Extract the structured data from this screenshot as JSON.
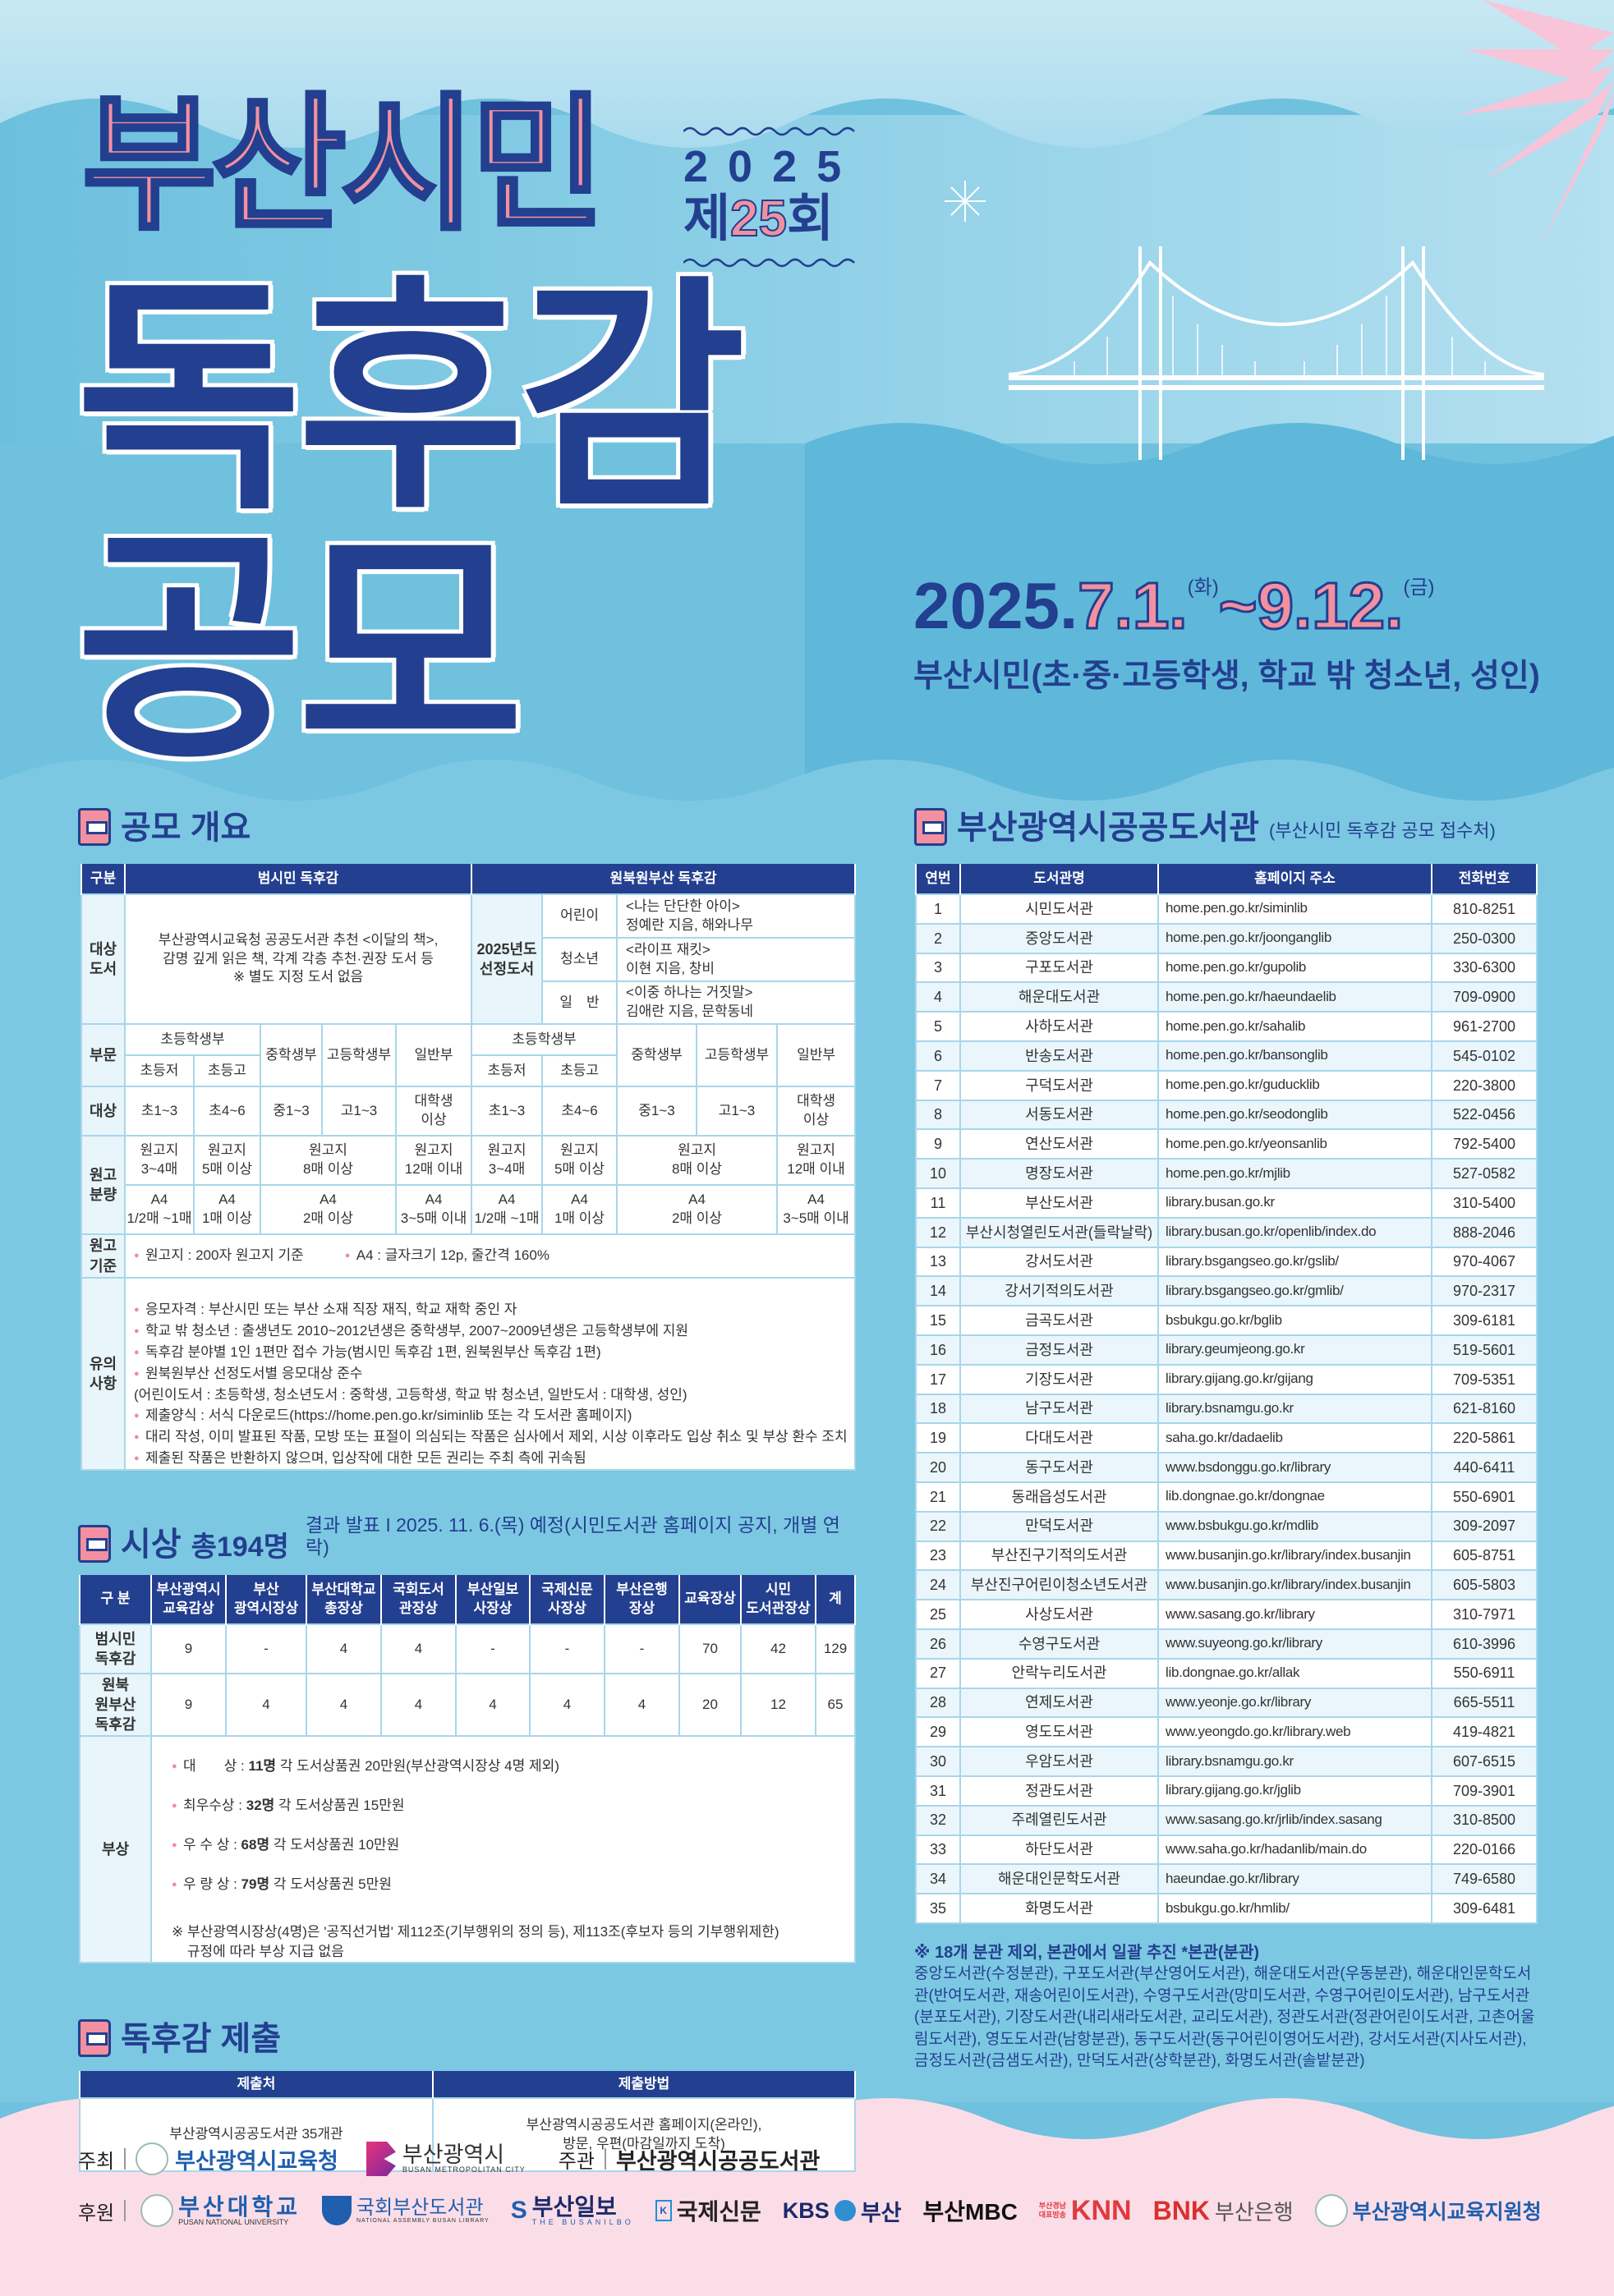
{
  "colors": {
    "navy": "#233f8f",
    "pink": "#f3909f",
    "sky": "#6fc1de",
    "light_sky": "#c3e6f2",
    "footer_pink": "#fbdde8"
  },
  "hero": {
    "title_top": "부산시민",
    "edition_year": "2025",
    "edition_prefix": "제",
    "edition_number": "25",
    "edition_suffix": "회",
    "title_main_1": "독후감",
    "title_main_2": "공모",
    "date_year": "2025.",
    "date_start": "7.1.",
    "date_start_day": "(화)",
    "date_tilde": "~",
    "date_end": "9.12.",
    "date_end_day": "(금)",
    "target": "부산시민(초·중·고등학생, 학교 밖 청소년, 성인)"
  },
  "overview": {
    "heading": "공모 개요",
    "col_label": "구분",
    "group1": "범시민 독후감",
    "group2": "원북원부산 독후감",
    "books_label": "대상\n도서",
    "books_desc": "부산광역시교육청 공공도서관 추천 <이달의 책>,\n감명 깊게 읽은 책, 각계 각층 추천·권장 도서 등\n※ 별도 지정 도서 없음",
    "selected_label": "2025년도\n선정도서",
    "selected": [
      {
        "category": "어린이",
        "book": "<나는 단단한 아이>\n정예란 지음, 해와나무"
      },
      {
        "category": "청소년",
        "book": "<라이프 재킷>\n이현 지음, 창비"
      },
      {
        "category": "일　반",
        "book": "<이중 하나는 거짓말>\n김애란 지음, 문학동네"
      }
    ],
    "division_label": "부문",
    "elementary": "초등학생부",
    "middle": "중학생부",
    "high": "고등학생부",
    "general": "일반부",
    "elem_low": "초등저",
    "elem_high": "초등고",
    "eligibility_label": "대상",
    "eligibility": [
      "초1~3",
      "초4~6",
      "중1~3",
      "고1~3",
      "대학생\n이상"
    ],
    "length_label": "원고\n분량",
    "manuscript": [
      "원고지\n3~4매",
      "원고지\n5매 이상",
      "원고지\n8매 이상",
      "원고지\n12매 이내"
    ],
    "a4": [
      "A4\n1/2매 ~1매",
      "A4\n1매 이상",
      "A4\n2매 이상",
      "A4\n3~5매 이내"
    ],
    "standard_label": "원고\n기준",
    "standards": [
      "원고지 : 200자 원고지 기준",
      "A4 : 글자크기 12p, 줄간격 160%"
    ],
    "notes_label": "유의\n사항",
    "notes": [
      "응모자격 : 부산시민 또는 부산 소재 직장 재직, 학교 재학 중인 자",
      "학교 밖 청소년 : 출생년도 2010~2012년생은 중학생부, 2007~2009년생은 고등학생부에 지원",
      "독후감 분야별 1인 1편만 접수 가능(범시민 독후감 1편, 원북원부산 독후감 1편)",
      "원북원부산 선정도서별 응모대상 준수",
      "(어린이도서 : 초등학생, 청소년도서 : 중학생, 고등학생, 학교 밖 청소년, 일반도서 : 대학생, 성인)",
      "제출양식 : 서식 다운로드(https://home.pen.go.kr/siminlib 또는 각 도서관 홈페이지)",
      "대리 작성, 이미 발표된 작품, 모방 또는 표절이 의심되는 작품은 심사에서 제외, 시상 이후라도  입상 취소 및 부상 환수 조치",
      "제출된 작품은 반환하지 않으며, 입상작에 대한 모든 권리는 주최 측에 귀속됨"
    ]
  },
  "awards": {
    "heading": "시상",
    "total": "총194명",
    "announce": "결과 발표 I 2025. 11. 6.(목) 예정(시민도서관 홈페이지 공지, 개별 연락)",
    "columns": [
      "구 분",
      "부산광역시\n교육감상",
      "부산\n광역시장상",
      "부산대학교\n총장상",
      "국회도서\n관장상",
      "부산일보\n사장상",
      "국제신문\n사장상",
      "부산은행\n장상",
      "교육장상",
      "시민\n도서관장상",
      "계"
    ],
    "rows": [
      {
        "label": "범시민\n독후감",
        "values": [
          "9",
          "-",
          "4",
          "4",
          "-",
          "-",
          "-",
          "70",
          "42",
          "129"
        ]
      },
      {
        "label": "원북\n원부산\n독후감",
        "values": [
          "9",
          "4",
          "4",
          "4",
          "4",
          "4",
          "4",
          "20",
          "12",
          "65"
        ]
      }
    ],
    "prize_label": "부상",
    "prizes": [
      {
        "name": "대　　상 : ",
        "count": "11명",
        "desc": " 각 도서상품권 20만원(부산광역시장상 4명 제외)"
      },
      {
        "name": "최우수상 : ",
        "count": "32명",
        "desc": " 각 도서상품권 15만원"
      },
      {
        "name": "우 수 상 : ",
        "count": "68명",
        "desc": " 각 도서상품권 10만원"
      },
      {
        "name": "우 량 상 : ",
        "count": "79명",
        "desc": " 각 도서상품권 5만원"
      }
    ],
    "prize_note": "※ 부산광역시장상(4명)은 '공직선거법' 제112조(기부행위의 정의 등), 제113조(후보자 등의 기부행위제한)\n    규정에 따라 부상 지급 없음"
  },
  "submission": {
    "heading": "독후감 제출",
    "headers": [
      "제출처",
      "제출방법"
    ],
    "values": [
      "부산광역시공공도서관 35개관",
      "부산광역시공공도서관 홈페이지(온라인),\n방문, 우편(마감일까지 도착)"
    ]
  },
  "libraries": {
    "heading": "부산광역시공공도서관",
    "subheading": "(부산시민 독후감 공모 접수처)",
    "headers": [
      "연번",
      "도서관명",
      "홈페이지 주소",
      "전화번호"
    ],
    "rows": [
      [
        "1",
        "시민도서관",
        "home.pen.go.kr/siminlib",
        "810-8251"
      ],
      [
        "2",
        "중앙도서관",
        "home.pen.go.kr/joonganglib",
        "250-0300"
      ],
      [
        "3",
        "구포도서관",
        "home.pen.go.kr/gupolib",
        "330-6300"
      ],
      [
        "4",
        "해운대도서관",
        "home.pen.go.kr/haeundaelib",
        "709-0900"
      ],
      [
        "5",
        "사하도서관",
        "home.pen.go.kr/sahalib",
        "961-2700"
      ],
      [
        "6",
        "반송도서관",
        "home.pen.go.kr/bansonglib",
        "545-0102"
      ],
      [
        "7",
        "구덕도서관",
        "home.pen.go.kr/guducklib",
        "220-3800"
      ],
      [
        "8",
        "서동도서관",
        "home.pen.go.kr/seodonglib",
        "522-0456"
      ],
      [
        "9",
        "연산도서관",
        "home.pen.go.kr/yeonsanlib",
        "792-5400"
      ],
      [
        "10",
        "명장도서관",
        "home.pen.go.kr/mjlib",
        "527-0582"
      ],
      [
        "11",
        "부산도서관",
        "library.busan.go.kr",
        "310-5400"
      ],
      [
        "12",
        "부산시청열린도서관(들락날락)",
        "library.busan.go.kr/openlib/index.do",
        "888-2046"
      ],
      [
        "13",
        "강서도서관",
        "library.bsgangseo.go.kr/gslib/",
        "970-4067"
      ],
      [
        "14",
        "강서기적의도서관",
        "library.bsgangseo.go.kr/gmlib/",
        "970-2317"
      ],
      [
        "15",
        "금곡도서관",
        "bsbukgu.go.kr/bglib",
        "309-6181"
      ],
      [
        "16",
        "금정도서관",
        "library.geumjeong.go.kr",
        "519-5601"
      ],
      [
        "17",
        "기장도서관",
        "library.gijang.go.kr/gijang",
        "709-5351"
      ],
      [
        "18",
        "남구도서관",
        "library.bsnamgu.go.kr",
        "621-8160"
      ],
      [
        "19",
        "다대도서관",
        "saha.go.kr/dadaelib",
        "220-5861"
      ],
      [
        "20",
        "동구도서관",
        "www.bsdonggu.go.kr/library",
        "440-6411"
      ],
      [
        "21",
        "동래읍성도서관",
        "lib.dongnae.go.kr/dongnae",
        "550-6901"
      ],
      [
        "22",
        "만덕도서관",
        "www.bsbukgu.go.kr/mdlib",
        "309-2097"
      ],
      [
        "23",
        "부산진구기적의도서관",
        "www.busanjin.go.kr/library/index.busanjin",
        "605-8751"
      ],
      [
        "24",
        "부산진구어린이청소년도서관",
        "www.busanjin.go.kr/library/index.busanjin",
        "605-5803"
      ],
      [
        "25",
        "사상도서관",
        "www.sasang.go.kr/library",
        "310-7971"
      ],
      [
        "26",
        "수영구도서관",
        "www.suyeong.go.kr/library",
        "610-3996"
      ],
      [
        "27",
        "안락누리도서관",
        "lib.dongnae.go.kr/allak",
        "550-6911"
      ],
      [
        "28",
        "연제도서관",
        "www.yeonje.go.kr/library",
        "665-5511"
      ],
      [
        "29",
        "영도도서관",
        "www.yeongdo.go.kr/library.web",
        "419-4821"
      ],
      [
        "30",
        "우암도서관",
        "library.bsnamgu.go.kr",
        "607-6515"
      ],
      [
        "31",
        "정관도서관",
        "library.gijang.go.kr/jglib",
        "709-3901"
      ],
      [
        "32",
        "주례열린도서관",
        "www.sasang.go.kr/jrlib/index.sasang",
        "310-8500"
      ],
      [
        "33",
        "하단도서관",
        "www.saha.go.kr/hadanlib/main.do",
        "220-0166"
      ],
      [
        "34",
        "해운대인문학도서관",
        "haeundae.go.kr/library",
        "749-6580"
      ],
      [
        "35",
        "화명도서관",
        "bsbukgu.go.kr/hmlib/",
        "309-6481"
      ]
    ],
    "note_title": "※ 18개 분관 제외, 본관에서 일괄 추진 *본관(분관)",
    "note_body": "중앙도서관(수정분관), 구포도서관(부산영어도서관), 해운대도서관(우동분관), 해운대인문학도서관(반여도서관, 재송어린이도서관), 수영구도서관(망미도서관, 수영구어린이도서관), 남구도서관(분포도서관), 기장도서관(내리새라도서관, 교리도서관), 정관도서관(정관어린이도서관, 고촌어울림도서관), 영도도서관(남항분관), 동구도서관(동구어린이영어도서관), 강서도서관(지사도서관), 금정도서관(금샘도서관), 만덕도서관(상학분관), 화명도서관(솔밭분관)"
  },
  "footer": {
    "host_label": "주최",
    "hosts": [
      "부산광역시교육청",
      "부산광역시"
    ],
    "host2_sub": "BUSAN METROPOLITAN CITY",
    "organizer_label": "주관",
    "organizer": "부산광역시공공도서관",
    "sponsor_label": "후원",
    "sponsors": [
      {
        "name": "부산대학교",
        "sub": "PUSAN NATIONAL UNIVERSITY"
      },
      {
        "name": "국회부산도서관",
        "sub": "NATIONAL ASSEMBLY BUSAN LIBRARY"
      },
      {
        "name": "부산일보",
        "sub": "THE BUSANILBO"
      },
      {
        "name": "국제신문"
      },
      {
        "name": "KBS",
        "name2": "부산"
      },
      {
        "name": "부산MBC"
      },
      {
        "name": "KNN",
        "pre": "부산경남\n대표방송"
      },
      {
        "name": "BNK",
        "name2": "부산은행"
      },
      {
        "name": "부산광역시교육지원청"
      }
    ]
  }
}
